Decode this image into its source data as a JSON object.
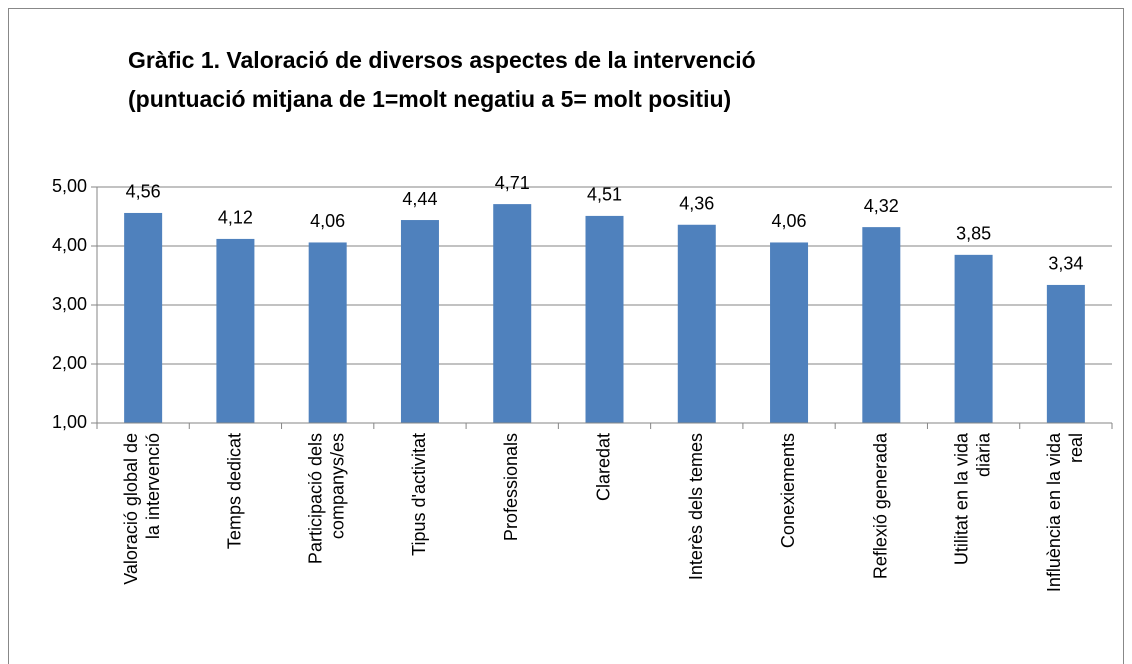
{
  "chart_data": {
    "type": "bar",
    "title": [
      "Gràfic 1. Valoració de diversos aspectes de la intervenció",
      "(puntuació mitjana de 1=molt negatiu a 5= molt positiu)"
    ],
    "categories": [
      "Valoració global de la intervenció",
      "Temps dedicat",
      "Participació dels companys/es",
      "Tipus d'activitat",
      "Professionals",
      "Claredat",
      "Interès dels temes",
      "Conexiements",
      "Reflexió generada",
      "Utilitat en la vida diària",
      "Influència en la vida real"
    ],
    "values": [
      4.56,
      4.12,
      4.06,
      4.44,
      4.71,
      4.51,
      4.36,
      4.06,
      4.32,
      3.85,
      3.34
    ],
    "value_labels": [
      "4,56",
      "4,12",
      "4,06",
      "4,44",
      "4,71",
      "4,51",
      "4,36",
      "4,06",
      "4,32",
      "3,85",
      "3,34"
    ],
    "color": "#4f81bd",
    "ylim": [
      1,
      5
    ],
    "yticks": [
      {
        "value": 1,
        "label": "1,00"
      },
      {
        "value": 2,
        "label": "2,00"
      },
      {
        "value": 3,
        "label": "3,00"
      },
      {
        "value": 4,
        "label": "4,00"
      },
      {
        "value": 5,
        "label": "5,00"
      }
    ],
    "grid": true
  }
}
